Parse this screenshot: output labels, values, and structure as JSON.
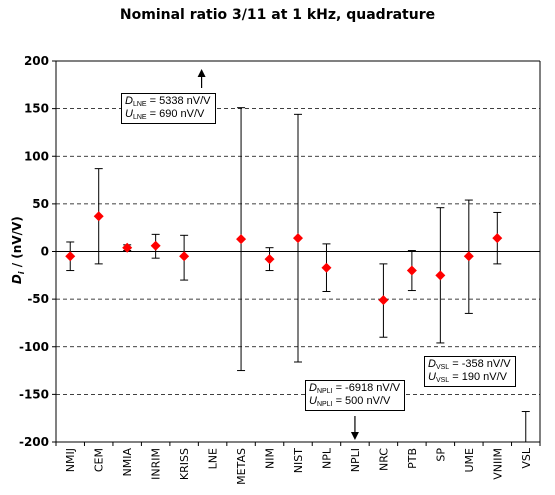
{
  "title": "Nominal ratio 3/11 at 1 kHz, quadrature",
  "chart_data": {
    "type": "scatter",
    "title": "Nominal ratio 3/11 at 1 kHz, quadrature",
    "ylabel_symbol": "D",
    "ylabel_sub": "i",
    "ylabel_rest": " / (nV/V)",
    "ylim": [
      -200,
      200
    ],
    "yticks": [
      -200,
      -150,
      -100,
      -50,
      0,
      50,
      100,
      150,
      200
    ],
    "grid": "horizontal dashed",
    "categories": [
      "NMIJ",
      "CEM",
      "NMIA",
      "INRIM",
      "KRISS",
      "LNE",
      "METAS",
      "NIM",
      "NIST",
      "NPL",
      "NPLI",
      "NRC",
      "PTB",
      "SP",
      "UME",
      "VNIIM",
      "VSL"
    ],
    "points": [
      {
        "lab": "NMIJ",
        "value": -5,
        "lower": -20,
        "upper": 10
      },
      {
        "lab": "CEM",
        "value": 37,
        "lower": -13,
        "upper": 87
      },
      {
        "lab": "NMIA",
        "value": 4,
        "lower": 1,
        "upper": 7
      },
      {
        "lab": "INRIM",
        "value": 6,
        "lower": -7,
        "upper": 18
      },
      {
        "lab": "KRISS",
        "value": -5,
        "lower": -30,
        "upper": 17
      },
      {
        "lab": "METAS",
        "value": 13,
        "lower": -125,
        "upper": 151
      },
      {
        "lab": "NIM",
        "value": -8,
        "lower": -20,
        "upper": 4
      },
      {
        "lab": "NIST",
        "value": 14,
        "lower": -116,
        "upper": 144
      },
      {
        "lab": "NPL",
        "value": -17,
        "lower": -42,
        "upper": 8
      },
      {
        "lab": "NRC",
        "value": -51,
        "lower": -90,
        "upper": -13
      },
      {
        "lab": "PTB",
        "value": -20,
        "lower": -41,
        "upper": 1
      },
      {
        "lab": "SP",
        "value": -25,
        "lower": -96,
        "upper": 46
      },
      {
        "lab": "UME",
        "value": -5,
        "lower": -65,
        "upper": 54
      },
      {
        "lab": "VNIIM",
        "value": 14,
        "lower": -13,
        "upper": 41
      }
    ],
    "off_scale": [
      {
        "lab": "LNE",
        "D_sym": "D",
        "D_sub": "LNE",
        "D_val": " = 5338 nV/V",
        "U_sym": "U",
        "U_sub": "LNE",
        "U_val": " = 690 nV/V",
        "direction": "up"
      },
      {
        "lab": "NPLI",
        "D_sym": "D",
        "D_sub": "NPLI",
        "D_val": " = -6918 nV/V",
        "U_sym": "U",
        "U_sub": "NPLI",
        "U_val": " = 500 nV/V",
        "direction": "down"
      },
      {
        "lab": "VSL",
        "D_sym": "D",
        "D_sub": "VSL",
        "D_val": " = -358 nV/V",
        "U_sym": "U",
        "U_sub": "VSL",
        "U_val": " = 190 nV/V",
        "direction": "down"
      }
    ],
    "vsl_bar_upper": -168,
    "marker_color": "#ff0000"
  }
}
